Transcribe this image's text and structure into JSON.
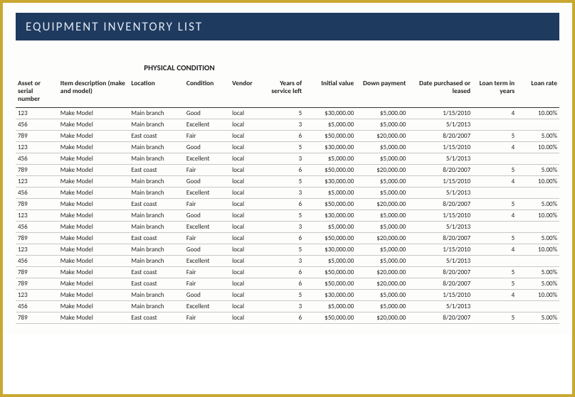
{
  "title": "EQUIPMENT INVENTORY LIST",
  "section_header": "PHYSICAL CONDITION",
  "colors": {
    "title_bg": "#1f3a5f",
    "title_fg": "#dfe7f0",
    "border": "#c9a831",
    "row_line": "#c8c8c8",
    "header_line": "#333333",
    "text": "#222222",
    "background": "#fdfdfc"
  },
  "columns": [
    {
      "key": "asset",
      "label": "Asset or serial number",
      "align": "left"
    },
    {
      "key": "desc",
      "label": "Item description (make and model)",
      "align": "left"
    },
    {
      "key": "loc",
      "label": "Location",
      "align": "left"
    },
    {
      "key": "cond",
      "label": "Condition",
      "align": "left"
    },
    {
      "key": "vend",
      "label": "Vendor",
      "align": "left"
    },
    {
      "key": "years",
      "label": "Years of service left",
      "align": "right"
    },
    {
      "key": "init",
      "label": "Initial value",
      "align": "right"
    },
    {
      "key": "down",
      "label": "Down payment",
      "align": "right"
    },
    {
      "key": "date",
      "label": "Date purchased or leased",
      "align": "right"
    },
    {
      "key": "term",
      "label": "Loan term in years",
      "align": "right"
    },
    {
      "key": "rate",
      "label": "Loan rate",
      "align": "right"
    }
  ],
  "rows": [
    {
      "asset": "123",
      "desc": "Make Model",
      "loc": "Main branch",
      "cond": "Good",
      "vend": "local",
      "years": "5",
      "init": "$30,000.00",
      "down": "$5,000.00",
      "date": "1/15/2010",
      "term": "4",
      "rate": "10.00%"
    },
    {
      "asset": "456",
      "desc": "Make Model",
      "loc": "Main branch",
      "cond": "Excellent",
      "vend": "local",
      "years": "3",
      "init": "$5,000.00",
      "down": "$5,000.00",
      "date": "5/1/2013",
      "term": "",
      "rate": ""
    },
    {
      "asset": "789",
      "desc": "Make Model",
      "loc": "East coast",
      "cond": "Fair",
      "vend": "local",
      "years": "6",
      "init": "$50,000.00",
      "down": "$20,000.00",
      "date": "8/20/2007",
      "term": "5",
      "rate": "5.00%"
    },
    {
      "asset": "123",
      "desc": "Make Model",
      "loc": "Main branch",
      "cond": "Good",
      "vend": "local",
      "years": "5",
      "init": "$30,000.00",
      "down": "$5,000.00",
      "date": "1/15/2010",
      "term": "4",
      "rate": "10.00%"
    },
    {
      "asset": "456",
      "desc": "Make Model",
      "loc": "Main branch",
      "cond": "Excellent",
      "vend": "local",
      "years": "3",
      "init": "$5,000.00",
      "down": "$5,000.00",
      "date": "5/1/2013",
      "term": "",
      "rate": ""
    },
    {
      "asset": "789",
      "desc": "Make Model",
      "loc": "East coast",
      "cond": "Fair",
      "vend": "local",
      "years": "6",
      "init": "$50,000.00",
      "down": "$20,000.00",
      "date": "8/20/2007",
      "term": "5",
      "rate": "5.00%"
    },
    {
      "asset": "123",
      "desc": "Make Model",
      "loc": "Main branch",
      "cond": "Good",
      "vend": "local",
      "years": "5",
      "init": "$30,000.00",
      "down": "$5,000.00",
      "date": "1/15/2010",
      "term": "4",
      "rate": "10.00%"
    },
    {
      "asset": "456",
      "desc": "Make Model",
      "loc": "Main branch",
      "cond": "Excellent",
      "vend": "local",
      "years": "3",
      "init": "$5,000.00",
      "down": "$5,000.00",
      "date": "5/1/2013",
      "term": "",
      "rate": ""
    },
    {
      "asset": "789",
      "desc": "Make Model",
      "loc": "East coast",
      "cond": "Fair",
      "vend": "local",
      "years": "6",
      "init": "$50,000.00",
      "down": "$20,000.00",
      "date": "8/20/2007",
      "term": "5",
      "rate": "5.00%"
    },
    {
      "asset": "123",
      "desc": "Make Model",
      "loc": "Main branch",
      "cond": "Good",
      "vend": "local",
      "years": "5",
      "init": "$30,000.00",
      "down": "$5,000.00",
      "date": "1/15/2010",
      "term": "4",
      "rate": "10.00%"
    },
    {
      "asset": "456",
      "desc": "Make Model",
      "loc": "Main branch",
      "cond": "Excellent",
      "vend": "local",
      "years": "3",
      "init": "$5,000.00",
      "down": "$5,000.00",
      "date": "5/1/2013",
      "term": "",
      "rate": ""
    },
    {
      "asset": "789",
      "desc": "Make Model",
      "loc": "East coast",
      "cond": "Fair",
      "vend": "local",
      "years": "6",
      "init": "$50,000.00",
      "down": "$20,000.00",
      "date": "8/20/2007",
      "term": "5",
      "rate": "5.00%"
    },
    {
      "asset": "123",
      "desc": "Make Model",
      "loc": "Main branch",
      "cond": "Good",
      "vend": "local",
      "years": "5",
      "init": "$30,000.00",
      "down": "$5,000.00",
      "date": "1/15/2010",
      "term": "4",
      "rate": "10.00%"
    },
    {
      "asset": "456",
      "desc": "Make Model",
      "loc": "Main branch",
      "cond": "Excellent",
      "vend": "local",
      "years": "3",
      "init": "$5,000.00",
      "down": "$5,000.00",
      "date": "5/1/2013",
      "term": "",
      "rate": ""
    },
    {
      "asset": "789",
      "desc": "Make Model",
      "loc": "East coast",
      "cond": "Fair",
      "vend": "local",
      "years": "6",
      "init": "$50,000.00",
      "down": "$20,000.00",
      "date": "8/20/2007",
      "term": "5",
      "rate": "5.00%"
    },
    {
      "asset": "789",
      "desc": "Make Model",
      "loc": "East coast",
      "cond": "Fair",
      "vend": "local",
      "years": "6",
      "init": "$50,000.00",
      "down": "$20,000.00",
      "date": "8/20/2007",
      "term": "5",
      "rate": "5.00%"
    },
    {
      "asset": "123",
      "desc": "Make Model",
      "loc": "Main branch",
      "cond": "Good",
      "vend": "local",
      "years": "5",
      "init": "$30,000.00",
      "down": "$5,000.00",
      "date": "1/15/2010",
      "term": "4",
      "rate": "10.00%"
    },
    {
      "asset": "456",
      "desc": "Make Model",
      "loc": "Main branch",
      "cond": "Excellent",
      "vend": "local",
      "years": "3",
      "init": "$5,000.00",
      "down": "$5,000.00",
      "date": "5/1/2013",
      "term": "",
      "rate": ""
    },
    {
      "asset": "789",
      "desc": "Make Model",
      "loc": "East coast",
      "cond": "Fair",
      "vend": "local",
      "years": "6",
      "init": "$50,000.00",
      "down": "$20,000.00",
      "date": "8/20/2007",
      "term": "5",
      "rate": "5.00%"
    }
  ]
}
